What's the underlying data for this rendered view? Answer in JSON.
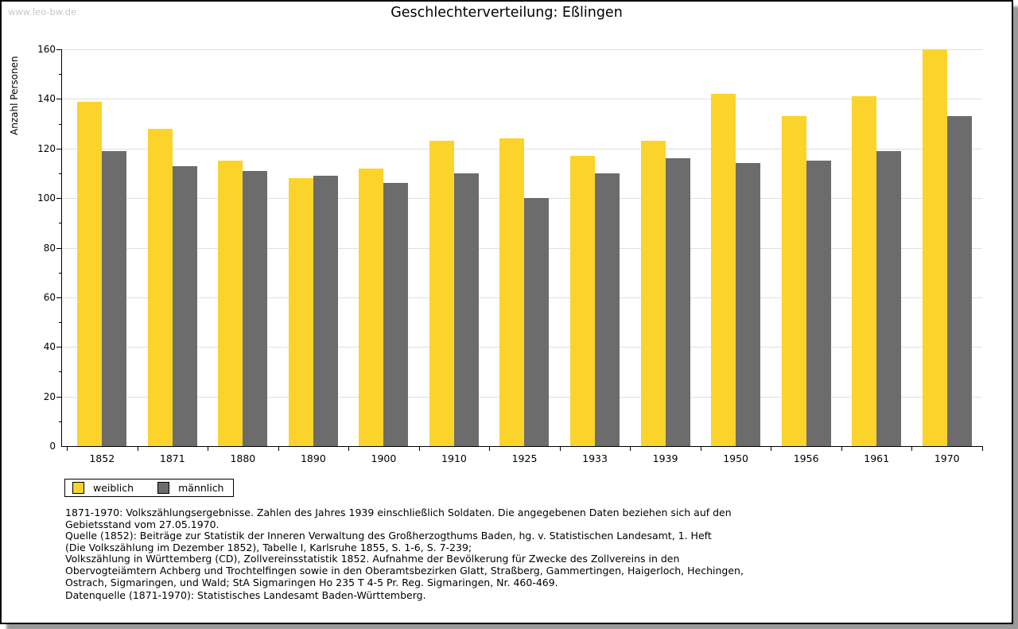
{
  "page": {
    "watermark": "www.leo-bw.de",
    "title": "Geschlechterverteilung: Eßlingen"
  },
  "chart_data": {
    "type": "bar",
    "title": "Geschlechterverteilung: Eßlingen",
    "ylabel": "Anzahl Personen",
    "xlabel": "",
    "ylim": [
      0,
      160
    ],
    "ytick_step": 20,
    "ytick_minor_step": 10,
    "grid": true,
    "legend_position": "bottom-left",
    "categories": [
      "1852",
      "1871",
      "1880",
      "1890",
      "1900",
      "1910",
      "1925",
      "1933",
      "1939",
      "1950",
      "1956",
      "1961",
      "1970"
    ],
    "series": [
      {
        "name": "weiblich",
        "color": "#fcd32b",
        "values": [
          139,
          128,
          115,
          108,
          112,
          123,
          124,
          117,
          123,
          142,
          133,
          141,
          160
        ]
      },
      {
        "name": "männlich",
        "color": "#6c6c6c",
        "values": [
          119,
          113,
          111,
          109,
          106,
          110,
          100,
          110,
          116,
          114,
          115,
          119,
          133
        ]
      }
    ],
    "colors": {
      "gridline": "#e0e0e0",
      "axis": "#000000"
    }
  },
  "notes": {
    "source_block": "1871-1970: Volkszählungsergebnisse. Zahlen des Jahres 1939 einschließlich Soldaten. Die angegebenen Daten beziehen sich auf den\nGebietsstand vom 27.05.1970.\nQuelle (1852): Beiträge zur Statistik der Inneren Verwaltung des Großherzogthums Baden, hg. v. Statistischen Landesamt, 1. Heft\n(Die Volkszählung im Dezember 1852), Tabelle I, Karlsruhe 1855, S. 1-6, S. 7-239;\nVolkszählung in Württemberg (CD), Zollvereinsstatistik 1852. Aufnahme der Bevölkerung für Zwecke des Zollvereins in den\nObervogteiämtern Achberg und Trochtelfingen sowie in den Oberamtsbezirken Glatt, Straßberg, Gammertingen, Haigerloch, Hechingen,\nOstrach, Sigmaringen, und Wald; StA Sigmaringen Ho 235 T 4-5 Pr. Reg. Sigmaringen, Nr. 460-469.",
    "data_source": "Datenquelle (1871-1970): Statistisches Landesamt Baden-Württemberg."
  }
}
